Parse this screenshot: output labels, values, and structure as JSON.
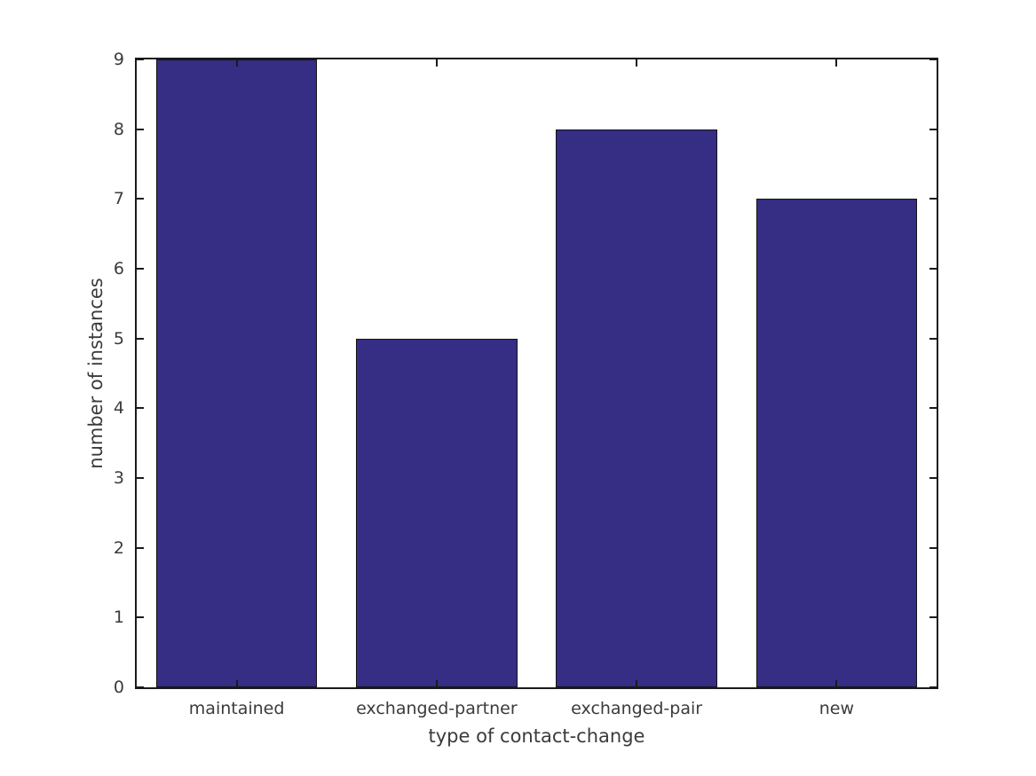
{
  "chart_data": {
    "type": "bar",
    "categories": [
      "maintained",
      "exchanged-partner",
      "exchanged-pair",
      "new"
    ],
    "values": [
      9,
      5,
      8,
      7
    ],
    "xlabel": "type of contact-change",
    "ylabel": "number of instances",
    "ylim": [
      0,
      9
    ],
    "yticks": [
      0,
      1,
      2,
      3,
      4,
      5,
      6,
      7,
      8,
      9
    ],
    "grid": false,
    "legend_position": "none",
    "bar_color": "#362d84",
    "bar_edge_color": "#141414",
    "axis_color": "#1a1a1a",
    "text_color": "#3b3b3b",
    "background_color": "#ffffff"
  }
}
